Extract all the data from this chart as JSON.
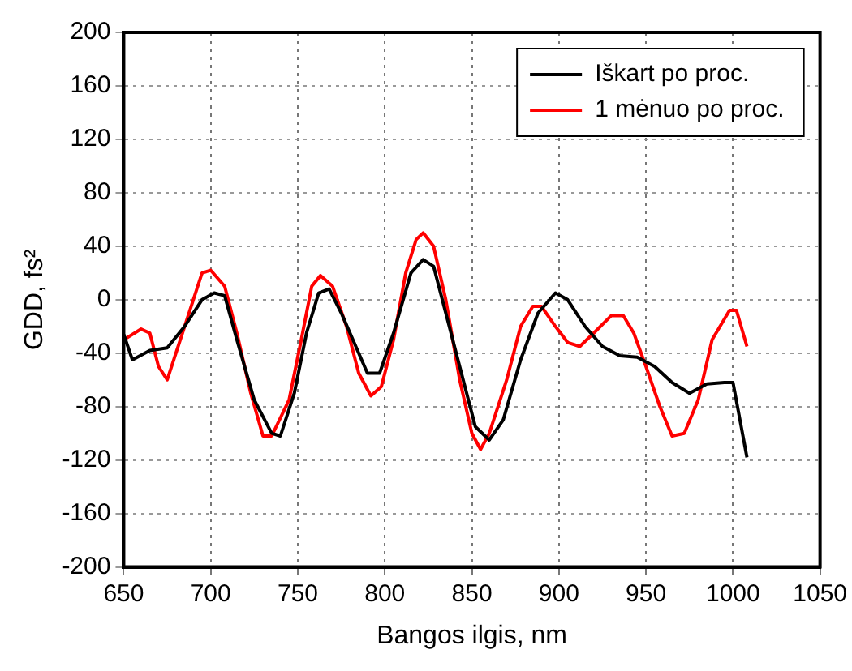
{
  "chart_data": {
    "type": "line",
    "xlabel": "Bangos ilgis, nm",
    "ylabel": "GDD, fs²",
    "xlim": [
      650,
      1050
    ],
    "ylim": [
      -200,
      200
    ],
    "xticks": [
      650,
      700,
      750,
      800,
      850,
      900,
      950,
      1000,
      1050
    ],
    "yticks": [
      -200,
      -160,
      -120,
      -80,
      -40,
      0,
      40,
      80,
      120,
      160,
      200
    ],
    "grid": true,
    "legend": "top right",
    "marker": "none",
    "line_style": "solid",
    "series": [
      {
        "name": "Iškart po proc.",
        "color": "#000000",
        "x": [
          650,
          655,
          665,
          675,
          685,
          695,
          702,
          708,
          715,
          725,
          735,
          740,
          748,
          755,
          762,
          768,
          775,
          785,
          790,
          797,
          805,
          815,
          822,
          828,
          835,
          845,
          852,
          860,
          868,
          878,
          888,
          898,
          905,
          915,
          925,
          935,
          945,
          955,
          965,
          975,
          985,
          995,
          1000,
          1008
        ],
        "values": [
          -26,
          -45,
          -38,
          -36,
          -20,
          0,
          5,
          3,
          -30,
          -75,
          -100,
          -102,
          -70,
          -25,
          5,
          8,
          -10,
          -40,
          -55,
          -55,
          -25,
          20,
          30,
          25,
          -10,
          -60,
          -95,
          -105,
          -90,
          -45,
          -10,
          5,
          0,
          -20,
          -35,
          -42,
          -43,
          -50,
          -62,
          -70,
          -63,
          -62,
          -62,
          -118
        ]
      },
      {
        "name": "1 mėnuo po proc.",
        "color": "#ff0000",
        "x": [
          650,
          660,
          665,
          670,
          675,
          685,
          695,
          700,
          708,
          715,
          723,
          730,
          735,
          745,
          752,
          758,
          763,
          770,
          778,
          785,
          792,
          798,
          805,
          812,
          818,
          822,
          828,
          835,
          843,
          850,
          855,
          860,
          870,
          878,
          885,
          890,
          898,
          905,
          912,
          920,
          930,
          937,
          943,
          950,
          958,
          965,
          972,
          980,
          988,
          998,
          1002,
          1008
        ],
        "values": [
          -30,
          -22,
          -25,
          -50,
          -60,
          -20,
          20,
          22,
          10,
          -25,
          -70,
          -102,
          -102,
          -75,
          -30,
          10,
          18,
          10,
          -20,
          -55,
          -72,
          -65,
          -30,
          20,
          45,
          50,
          40,
          0,
          -60,
          -100,
          -112,
          -100,
          -60,
          -20,
          -5,
          -5,
          -20,
          -32,
          -35,
          -25,
          -12,
          -12,
          -25,
          -50,
          -80,
          -102,
          -100,
          -75,
          -30,
          -8,
          -8,
          -35
        ]
      }
    ]
  }
}
